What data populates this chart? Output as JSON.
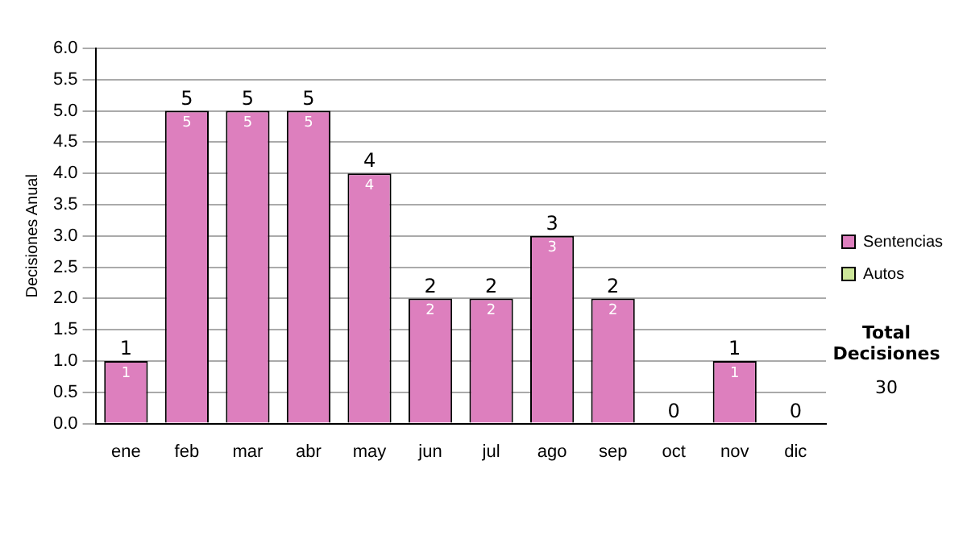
{
  "chart_data": {
    "type": "bar",
    "ylabel": "Decisiones Anual",
    "categories": [
      "ene",
      "feb",
      "mar",
      "abr",
      "may",
      "jun",
      "jul",
      "ago",
      "sep",
      "oct",
      "nov",
      "dic"
    ],
    "series": [
      {
        "name": "Sentencias",
        "color": "#dd7fbe",
        "values": [
          1,
          5,
          5,
          5,
          4,
          2,
          2,
          3,
          2,
          0,
          1,
          0
        ],
        "value_labels": [
          "1",
          "5",
          "5",
          "5",
          "4",
          "2",
          "2",
          "3",
          "2",
          null,
          "1",
          null
        ]
      },
      {
        "name": "Autos",
        "color": "#cce699",
        "values": [
          0,
          0,
          0,
          0,
          0,
          0,
          0,
          0,
          0,
          0,
          0,
          0
        ]
      }
    ],
    "stacked": true,
    "totals": [
      "1",
      "5",
      "5",
      "5",
      "4",
      "2",
      "2",
      "3",
      "2",
      "0",
      "1",
      "0"
    ],
    "ylim": [
      0,
      6
    ],
    "yticks": [
      {
        "value": 0,
        "label": "0.0"
      },
      0.5,
      {
        "value": 1,
        "label": "1.0"
      },
      1.5,
      {
        "value": 2,
        "label": "2.0"
      },
      2.5,
      {
        "value": 3,
        "label": "3.0"
      },
      3.5,
      {
        "value": 4,
        "label": "4.0"
      },
      4.5,
      {
        "value": 5,
        "label": "5.0"
      },
      5.5,
      {
        "value": 6,
        "label": "6.0"
      }
    ],
    "grid": "y",
    "legend": "right",
    "annotations": [
      "Total Decisiones",
      "30"
    ]
  }
}
